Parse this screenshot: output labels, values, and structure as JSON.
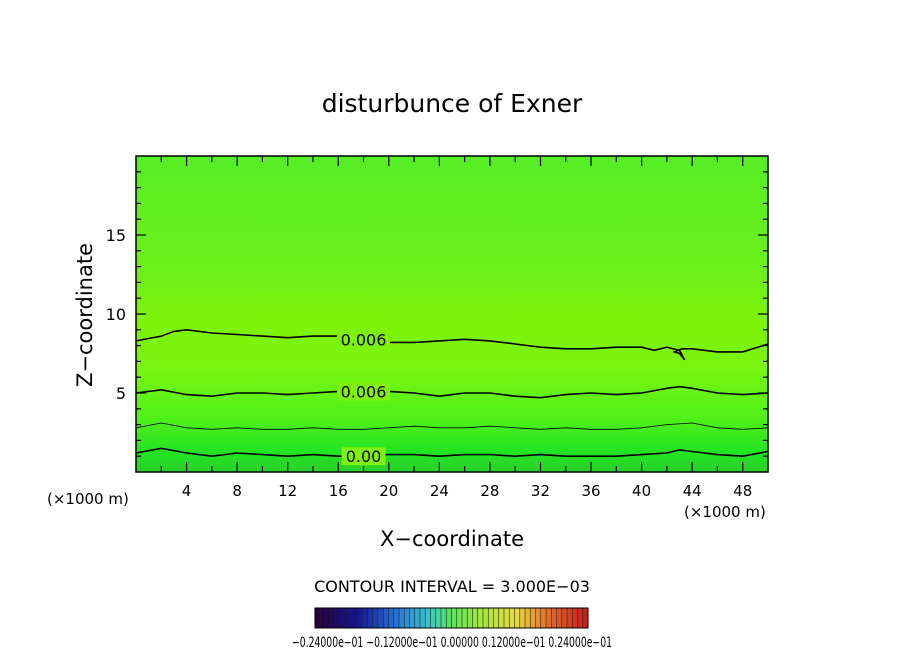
{
  "chart_data": {
    "type": "contour",
    "title": "disturbunce of Exner",
    "xlabel": "X−coordinate",
    "ylabel": "Z−coordinate",
    "x_unit": "(×1000 m)",
    "x_unit_right": "(×1000 m)",
    "xlim": [
      0,
      50
    ],
    "ylim": [
      0,
      20
    ],
    "xticks": [
      4,
      8,
      12,
      16,
      20,
      24,
      28,
      32,
      36,
      40,
      44,
      48
    ],
    "yticks": [
      5,
      10,
      15
    ],
    "contour_interval_text": "CONTOUR INTERVAL = 3.000E−03",
    "colorbar_labels_text": "−0.24000e−01   −0.12000e−01   0.00000   0.12000e−01   0.24000e−01",
    "colorbar_range": [
      -0.024,
      0.024
    ],
    "contours": [
      {
        "label": "0.00",
        "label_x": 18.0,
        "points": [
          [
            0,
            1.2
          ],
          [
            2,
            1.5
          ],
          [
            4,
            1.2
          ],
          [
            6,
            1.0
          ],
          [
            8,
            1.2
          ],
          [
            10,
            1.1
          ],
          [
            12,
            1.0
          ],
          [
            14,
            1.1
          ],
          [
            16,
            1.0
          ],
          [
            18,
            1.0
          ],
          [
            20,
            1.1
          ],
          [
            22,
            1.1
          ],
          [
            24,
            1.0
          ],
          [
            26,
            1.1
          ],
          [
            28,
            1.1
          ],
          [
            30,
            1.0
          ],
          [
            32,
            1.1
          ],
          [
            34,
            1.0
          ],
          [
            36,
            1.0
          ],
          [
            38,
            1.0
          ],
          [
            40,
            1.1
          ],
          [
            42,
            1.2
          ],
          [
            43,
            1.4
          ],
          [
            44,
            1.3
          ],
          [
            46,
            1.1
          ],
          [
            48,
            1.0
          ],
          [
            50,
            1.3
          ]
        ]
      },
      {
        "label": "",
        "thin": true,
        "points": [
          [
            0,
            2.8
          ],
          [
            2,
            3.1
          ],
          [
            4,
            2.8
          ],
          [
            6,
            2.7
          ],
          [
            8,
            2.8
          ],
          [
            10,
            2.7
          ],
          [
            12,
            2.7
          ],
          [
            14,
            2.8
          ],
          [
            16,
            2.7
          ],
          [
            18,
            2.7
          ],
          [
            20,
            2.8
          ],
          [
            22,
            2.9
          ],
          [
            24,
            2.8
          ],
          [
            26,
            2.8
          ],
          [
            28,
            2.9
          ],
          [
            30,
            2.8
          ],
          [
            32,
            2.7
          ],
          [
            34,
            2.8
          ],
          [
            36,
            2.7
          ],
          [
            38,
            2.7
          ],
          [
            40,
            2.8
          ],
          [
            42,
            3.0
          ],
          [
            44,
            3.1
          ],
          [
            46,
            2.8
          ],
          [
            48,
            2.7
          ],
          [
            50,
            2.8
          ]
        ]
      },
      {
        "label": "0.006",
        "label_x": 18.0,
        "points": [
          [
            0,
            5.0
          ],
          [
            2,
            5.2
          ],
          [
            4,
            4.9
          ],
          [
            6,
            4.8
          ],
          [
            8,
            5.0
          ],
          [
            10,
            5.0
          ],
          [
            12,
            4.9
          ],
          [
            14,
            5.0
          ],
          [
            16,
            5.1
          ],
          [
            18,
            5.1
          ],
          [
            20,
            5.1
          ],
          [
            22,
            5.0
          ],
          [
            24,
            4.8
          ],
          [
            26,
            5.0
          ],
          [
            28,
            5.0
          ],
          [
            30,
            4.8
          ],
          [
            32,
            4.7
          ],
          [
            34,
            4.9
          ],
          [
            36,
            5.0
          ],
          [
            38,
            4.9
          ],
          [
            40,
            5.0
          ],
          [
            42,
            5.3
          ],
          [
            43,
            5.4
          ],
          [
            44,
            5.3
          ],
          [
            46,
            5.0
          ],
          [
            48,
            4.9
          ],
          [
            50,
            5.0
          ]
        ]
      },
      {
        "label": "0.006",
        "label_x": 18.0,
        "points": [
          [
            0,
            8.3
          ],
          [
            2,
            8.6
          ],
          [
            3,
            8.9
          ],
          [
            4,
            9.0
          ],
          [
            6,
            8.8
          ],
          [
            8,
            8.7
          ],
          [
            10,
            8.6
          ],
          [
            12,
            8.5
          ],
          [
            14,
            8.6
          ],
          [
            16,
            8.6
          ],
          [
            18,
            8.4
          ],
          [
            20,
            8.2
          ],
          [
            22,
            8.2
          ],
          [
            24,
            8.3
          ],
          [
            26,
            8.4
          ],
          [
            28,
            8.3
          ],
          [
            30,
            8.1
          ],
          [
            32,
            7.9
          ],
          [
            34,
            7.8
          ],
          [
            36,
            7.8
          ],
          [
            38,
            7.9
          ],
          [
            40,
            7.9
          ],
          [
            41,
            7.7
          ],
          [
            42,
            7.9
          ],
          [
            43,
            7.7
          ],
          [
            43.4,
            7.1
          ],
          [
            43,
            7.5
          ],
          [
            42.6,
            7.6
          ],
          [
            43.2,
            7.8
          ],
          [
            44,
            7.8
          ],
          [
            46,
            7.6
          ],
          [
            48,
            7.6
          ],
          [
            50,
            8.1
          ]
        ]
      }
    ]
  }
}
